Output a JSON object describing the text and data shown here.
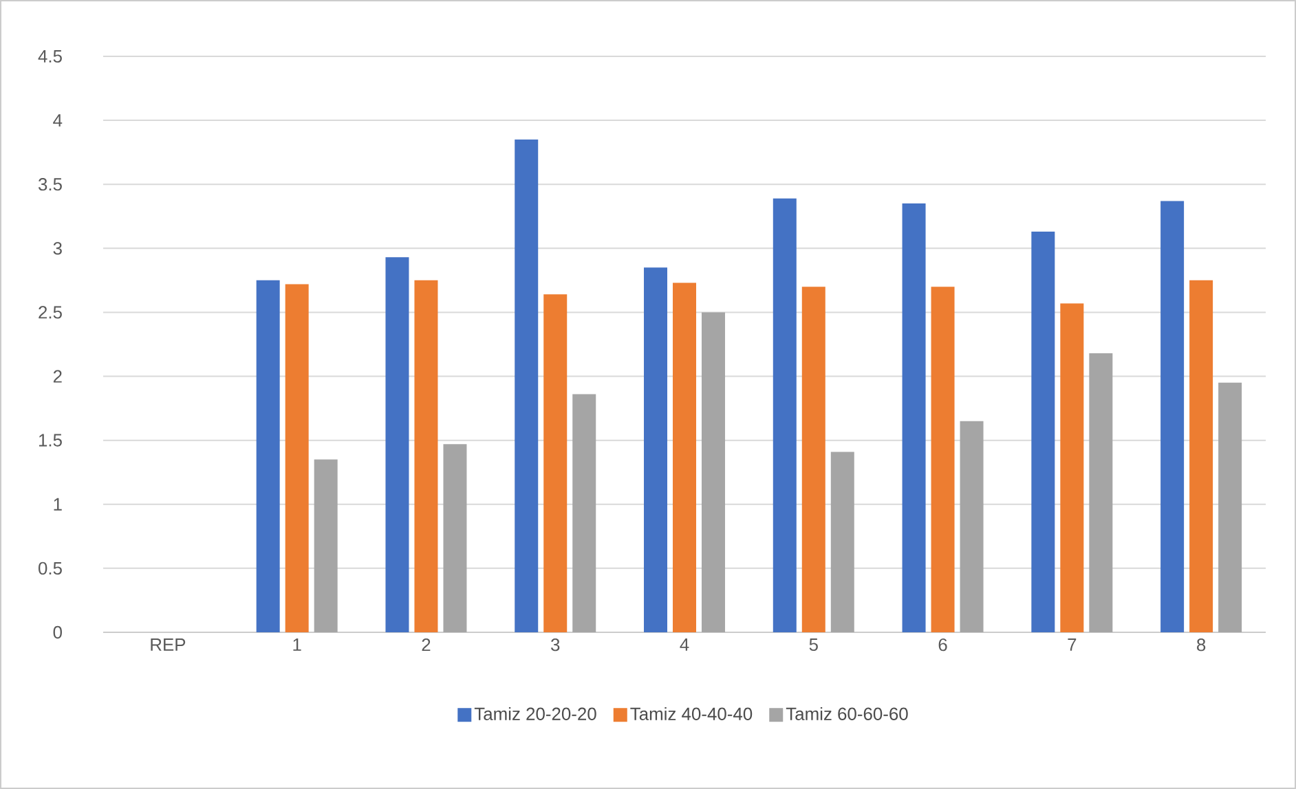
{
  "chart_data": {
    "type": "bar",
    "categories": [
      "REP",
      "1",
      "2",
      "3",
      "4",
      "5",
      "6",
      "7",
      "8"
    ],
    "series": [
      {
        "name": "Tamiz 20-20-20",
        "color": "#4472c4",
        "values": [
          null,
          2.75,
          2.93,
          3.85,
          2.85,
          3.39,
          3.35,
          3.13,
          3.37
        ]
      },
      {
        "name": "Tamiz 40-40-40",
        "color": "#ed7d31",
        "values": [
          null,
          2.72,
          2.75,
          2.64,
          2.73,
          2.7,
          2.7,
          2.57,
          2.75
        ]
      },
      {
        "name": "Tamiz 60-60-60",
        "color": "#a5a5a5",
        "values": [
          null,
          1.35,
          1.47,
          1.86,
          2.5,
          1.41,
          1.65,
          2.18,
          1.95
        ]
      }
    ],
    "ylim": [
      0,
      4.5
    ],
    "yticks": [
      0,
      0.5,
      1,
      1.5,
      2,
      2.5,
      3,
      3.5,
      4,
      4.5
    ],
    "grid": "y",
    "legend": "bottom"
  }
}
